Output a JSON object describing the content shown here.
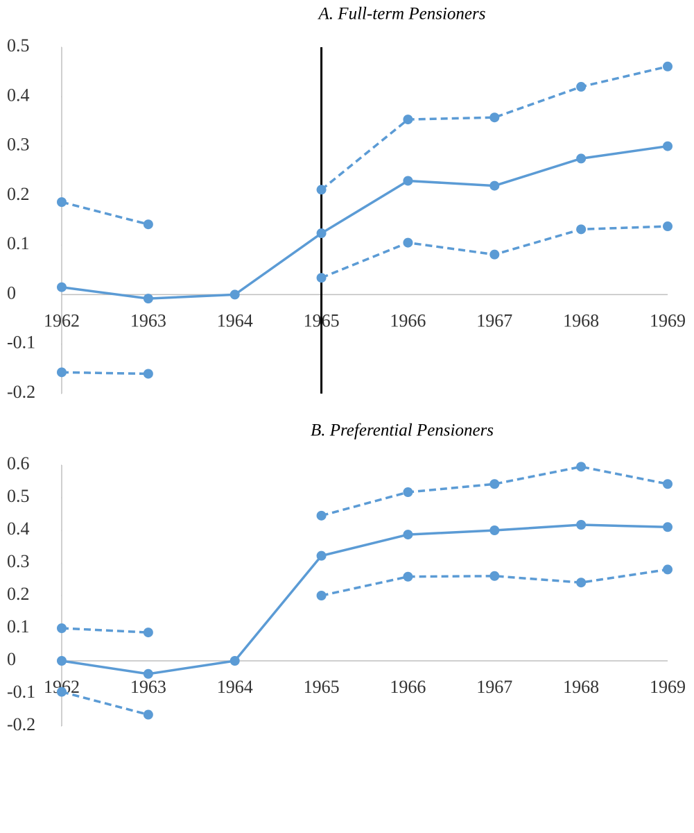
{
  "chart_data": [
    {
      "type": "line",
      "title": "A.   Full-term Pensioners",
      "categories": [
        "1962",
        "1963",
        "1964",
        "1965",
        "1966",
        "1967",
        "1968",
        "1969"
      ],
      "series": [
        {
          "color": "#5b9bd5",
          "style": "dashed",
          "values": [
            0.187,
            0.142,
            null,
            0.212,
            0.354,
            0.358,
            0.42,
            0.461
          ]
        },
        {
          "color": "#5b9bd5",
          "style": "solid",
          "values": [
            0.015,
            -0.008,
            0,
            0.124,
            0.23,
            0.22,
            0.275,
            0.3
          ]
        },
        {
          "color": "#5b9bd5",
          "style": "dashed",
          "values": [
            -0.157,
            -0.16,
            null,
            0.034,
            0.105,
            0.081,
            0.132,
            0.138
          ]
        }
      ],
      "ylim": [
        -0.2,
        0.5
      ],
      "yticks": [
        -0.2,
        -0.1,
        0,
        0.1,
        0.2,
        0.3,
        0.4,
        0.5
      ],
      "vline": "1965",
      "vline_color": "#000000"
    },
    {
      "type": "line",
      "title": "B.   Preferential Pensioners",
      "categories": [
        "1962",
        "1963",
        "1964",
        "1965",
        "1966",
        "1967",
        "1968",
        "1969"
      ],
      "series": [
        {
          "color": "#5b9bd5",
          "style": "dashed",
          "values": [
            0.1,
            0.087,
            null,
            0.445,
            0.517,
            0.542,
            0.595,
            0.542
          ]
        },
        {
          "color": "#5b9bd5",
          "style": "solid",
          "values": [
            0,
            -0.04,
            0,
            0.322,
            0.387,
            0.4,
            0.417,
            0.41
          ]
        },
        {
          "color": "#5b9bd5",
          "style": "dashed",
          "values": [
            -0.095,
            -0.165,
            null,
            0.2,
            0.258,
            0.26,
            0.24,
            0.28
          ]
        }
      ],
      "ylim": [
        -0.2,
        0.6
      ],
      "yticks": [
        -0.2,
        -0.1,
        0,
        0.1,
        0.2,
        0.3,
        0.4,
        0.5,
        0.6
      ]
    }
  ]
}
